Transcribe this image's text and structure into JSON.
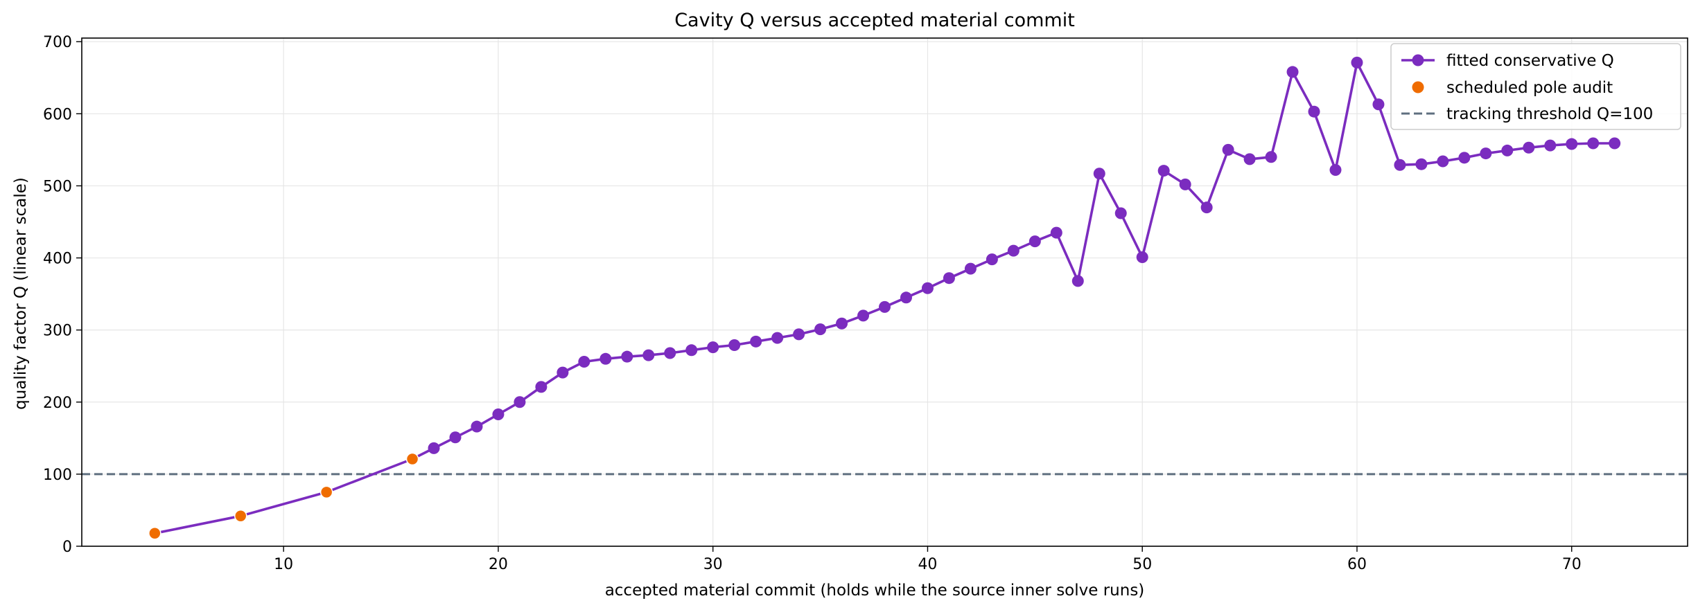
{
  "chart_data": {
    "type": "line",
    "title": "Cavity Q versus accepted material commit",
    "xlabel": "accepted material commit (holds while the source inner solve runs)",
    "ylabel": "quality factor Q (linear scale)",
    "xlim": [
      0.6,
      75.4
    ],
    "ylim": [
      0,
      705
    ],
    "xticks": [
      10,
      20,
      30,
      40,
      50,
      60,
      70
    ],
    "yticks": [
      0,
      100,
      200,
      300,
      400,
      500,
      600,
      700
    ],
    "grid": true,
    "legend_position": "top-right",
    "colors": {
      "series": "#7b2cbf",
      "audit": "#ef6c00",
      "threshold": "#5f6f7f"
    },
    "series": [
      {
        "name": "fitted conservative Q",
        "style": "line-with-markers",
        "x": [
          4,
          8,
          12,
          16,
          17,
          18,
          19,
          20,
          21,
          22,
          23,
          24,
          25,
          26,
          27,
          28,
          29,
          30,
          31,
          32,
          33,
          34,
          35,
          36,
          37,
          38,
          39,
          40,
          41,
          42,
          43,
          44,
          45,
          46,
          47,
          48,
          49,
          50,
          51,
          52,
          53,
          54,
          55,
          56,
          57,
          58,
          59,
          60,
          61,
          62,
          63,
          64,
          65,
          66,
          67,
          68,
          69,
          70,
          71,
          72
        ],
        "y": [
          18,
          42,
          75,
          121,
          136,
          151,
          166,
          183,
          200,
          221,
          241,
          256,
          260,
          263,
          265,
          268,
          272,
          276,
          279,
          284,
          289,
          294,
          301,
          309,
          320,
          332,
          345,
          358,
          372,
          385,
          398,
          410,
          423,
          435,
          368,
          517,
          462,
          401,
          521,
          502,
          470,
          550,
          537,
          540,
          658,
          603,
          522,
          671,
          613,
          529,
          530,
          534,
          539,
          545,
          549,
          553,
          556,
          558,
          559,
          559
        ]
      },
      {
        "name": "scheduled pole audit",
        "style": "scatter",
        "x": [
          4,
          8,
          12,
          16
        ],
        "y": [
          18,
          42,
          75,
          121
        ]
      }
    ],
    "reference_lines": [
      {
        "name": "tracking threshold Q=100",
        "orientation": "horizontal",
        "value": 100,
        "style": "dashed"
      }
    ]
  }
}
